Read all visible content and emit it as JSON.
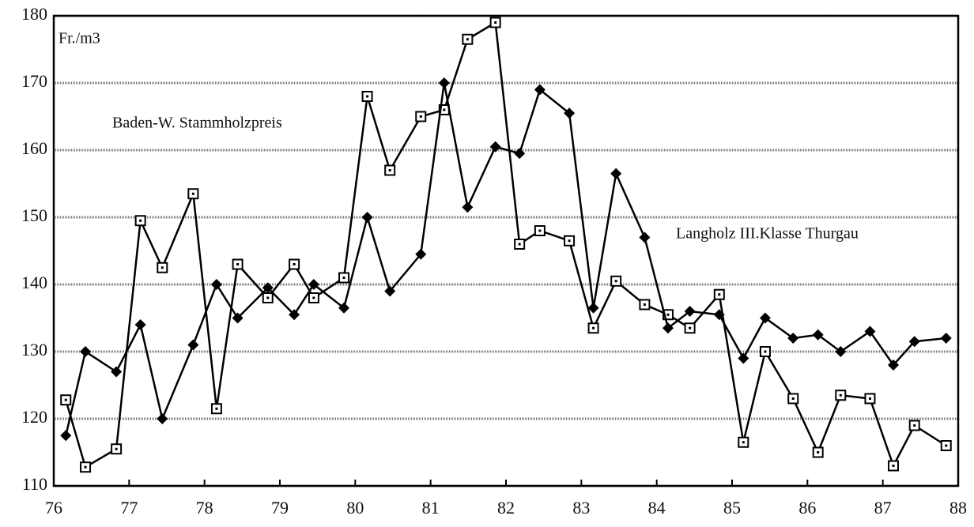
{
  "chart_data": {
    "type": "line",
    "y_label": "Fr./m3",
    "annotations": [
      "Baden-W. Stammholzpreis",
      "Langholz III.Klasse Thurgau"
    ],
    "x": [
      76.16,
      76.42,
      76.83,
      77.15,
      77.44,
      77.85,
      78.16,
      78.44,
      78.84,
      79.19,
      79.45,
      79.85,
      80.16,
      80.46,
      80.87,
      81.18,
      81.49,
      81.86,
      82.18,
      82.45,
      82.84,
      83.16,
      83.46,
      83.84,
      84.15,
      84.44,
      84.83,
      85.15,
      85.44,
      85.81,
      86.14,
      86.44,
      86.83,
      87.14,
      87.42,
      87.84
    ],
    "series": [
      {
        "name": "Baden-W. Stammholzpreis",
        "color": "#000000",
        "marker": "square",
        "values": [
          122.8,
          112.8,
          115.5,
          149.5,
          142.5,
          153.5,
          121.5,
          143,
          138,
          143,
          138,
          141,
          168,
          157,
          165,
          166,
          176.5,
          179,
          146,
          148,
          146.5,
          133.5,
          140.5,
          137,
          135.5,
          133.5,
          138.5,
          116.5,
          130,
          123,
          115,
          123.5,
          123,
          113,
          119,
          116
        ]
      },
      {
        "name": "Langholz III.Klasse Thurgau",
        "color": "#000000",
        "marker": "diamond",
        "values": [
          117.5,
          130,
          127,
          134,
          120,
          131,
          140,
          135,
          139.5,
          135.5,
          140,
          136.5,
          150,
          139,
          144.5,
          170,
          151.5,
          160.5,
          159.5,
          169,
          165.5,
          136.5,
          156.5,
          147,
          133.5,
          136,
          135.5,
          129,
          135,
          132,
          132.5,
          130,
          133,
          128,
          131.5,
          132
        ]
      }
    ],
    "xlim": [
      76,
      88
    ],
    "xticks": [
      76,
      77,
      78,
      79,
      80,
      81,
      82,
      83,
      84,
      85,
      86,
      87,
      88
    ],
    "ylim": [
      110,
      180
    ],
    "yticks": [
      110,
      120,
      130,
      140,
      150,
      160,
      170,
      180
    ],
    "grid": true
  }
}
